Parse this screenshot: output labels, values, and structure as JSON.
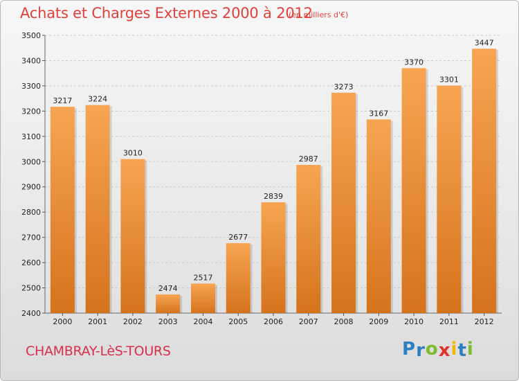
{
  "chart_data": {
    "type": "bar",
    "title": "Achats et Charges Externes 2000 à 2012",
    "subtitle": "(en milliers d'€)",
    "categories": [
      "2000",
      "2001",
      "2002",
      "2003",
      "2004",
      "2005",
      "2006",
      "2007",
      "2008",
      "2009",
      "2010",
      "2011",
      "2012"
    ],
    "values": [
      3217,
      3224,
      3010,
      2474,
      2517,
      2677,
      2839,
      2987,
      3273,
      3167,
      3370,
      3301,
      3447
    ],
    "ylim": [
      2400,
      3500
    ],
    "yticks": [
      2400,
      2500,
      2600,
      2700,
      2800,
      2900,
      3000,
      3100,
      3200,
      3300,
      3400,
      3500
    ],
    "grid": true,
    "bar_color_top": "#f7a552",
    "bar_color_bottom": "#d6731c"
  },
  "footer": {
    "city": "CHAMBRAY-LèS-TOURS",
    "logo_letters": [
      "P",
      "r",
      "o",
      "x",
      "i",
      "t",
      "i"
    ],
    "logo_colors": [
      "#2d7fc1",
      "#2d7fc1",
      "#7dbb31",
      "#e1302a",
      "#f2b705",
      "#2d7fc1",
      "#7dbb31"
    ]
  }
}
